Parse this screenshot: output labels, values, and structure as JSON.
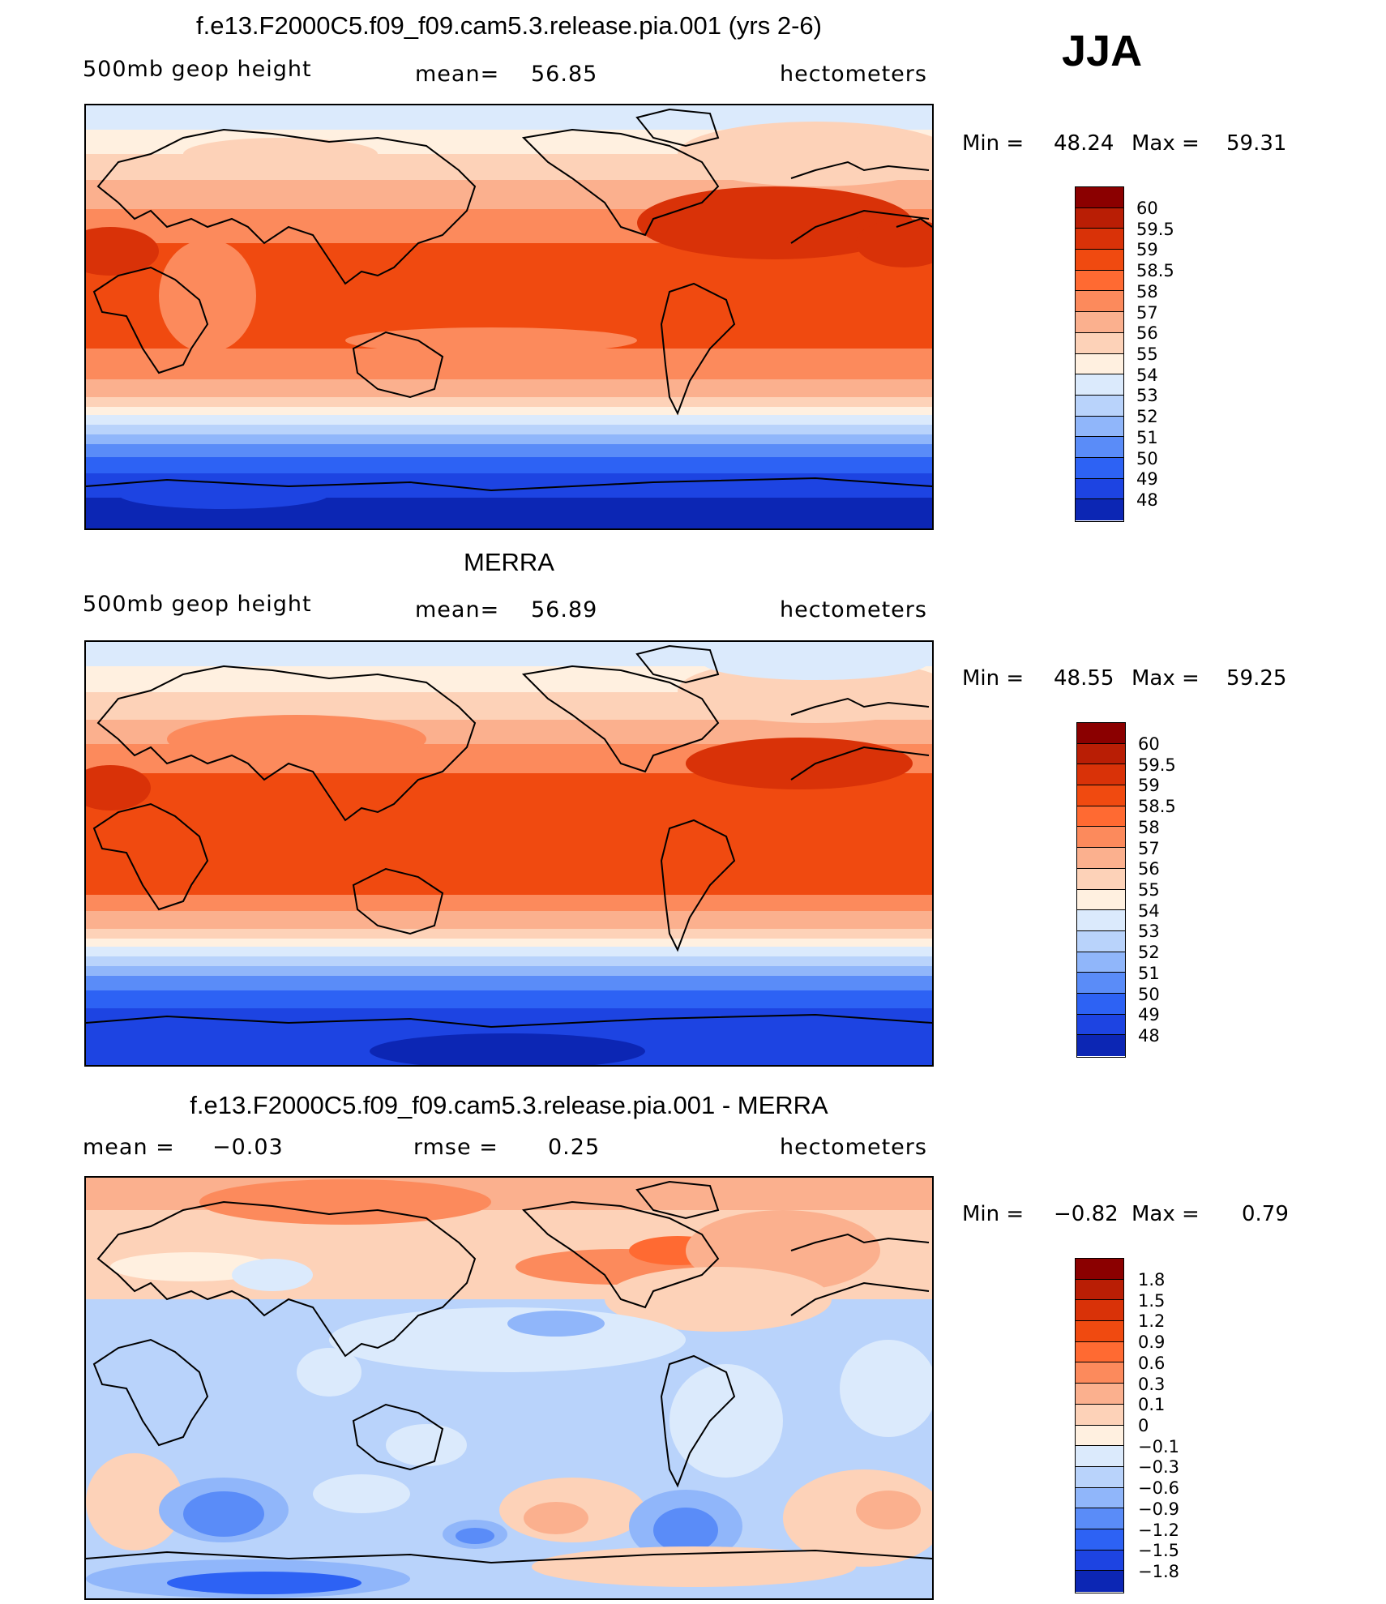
{
  "season": "JJA",
  "panels": [
    {
      "id": "model",
      "title": "f.e13.F2000C5.f09_f09.cam5.3.release.pia.001 (yrs 2-6)",
      "variable": "500mb geop height",
      "mean_label": "mean=",
      "mean_value": "56.85",
      "units": "hectometers",
      "min_label": "Min =",
      "min_value": "48.24",
      "max_label": "Max =",
      "max_value": "59.31",
      "levels": [
        "60",
        "59.5",
        "59",
        "58.5",
        "58",
        "57",
        "56",
        "55",
        "54",
        "53",
        "52",
        "51",
        "50",
        "49",
        "48"
      ],
      "colors": [
        "#8b0000",
        "#b91e05",
        "#d93208",
        "#f04a10",
        "#ff6a32",
        "#fc8a5c",
        "#fbb08e",
        "#fdd2b8",
        "#fff0e0",
        "#dbeafc",
        "#b9d3fb",
        "#90b6fa",
        "#5a8cf8",
        "#2d62f4",
        "#1d44e2",
        "#0c26b4"
      ]
    },
    {
      "id": "obs",
      "title": "MERRA",
      "variable": "500mb geop height",
      "mean_label": "mean=",
      "mean_value": "56.89",
      "units": "hectometers",
      "min_label": "Min =",
      "min_value": "48.55",
      "max_label": "Max =",
      "max_value": "59.25",
      "levels": [
        "60",
        "59.5",
        "59",
        "58.5",
        "58",
        "57",
        "56",
        "55",
        "54",
        "53",
        "52",
        "51",
        "50",
        "49",
        "48"
      ],
      "colors": [
        "#8b0000",
        "#b91e05",
        "#d93208",
        "#f04a10",
        "#ff6a32",
        "#fc8a5c",
        "#fbb08e",
        "#fdd2b8",
        "#fff0e0",
        "#dbeafc",
        "#b9d3fb",
        "#90b6fa",
        "#5a8cf8",
        "#2d62f4",
        "#1d44e2",
        "#0c26b4"
      ]
    },
    {
      "id": "diff",
      "title": "f.e13.F2000C5.f09_f09.cam5.3.release.pia.001 - MERRA",
      "variable_label": "mean =",
      "variable_value": "−0.03",
      "rmse_label": "rmse =",
      "rmse_value": "0.25",
      "units": "hectometers",
      "min_label": "Min =",
      "min_value": "−0.82",
      "max_label": "Max =",
      "max_value": "0.79",
      "levels": [
        "1.8",
        "1.5",
        "1.2",
        "0.9",
        "0.6",
        "0.3",
        "0.1",
        "0",
        "−0.1",
        "−0.3",
        "−0.6",
        "−0.9",
        "−1.2",
        "−1.5",
        "−1.8"
      ],
      "colors": [
        "#8b0000",
        "#b91e05",
        "#d93208",
        "#f04a10",
        "#ff6a32",
        "#fc8a5c",
        "#fbb08e",
        "#fdd2b8",
        "#fff0e0",
        "#dbeafc",
        "#b9d3fb",
        "#90b6fa",
        "#5a8cf8",
        "#2d62f4",
        "#1d44e2",
        "#0c26b4"
      ]
    }
  ]
}
